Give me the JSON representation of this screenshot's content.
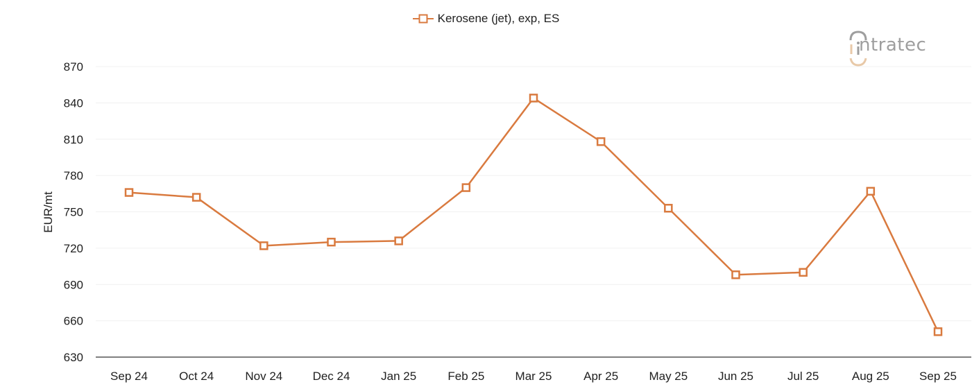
{
  "legend": {
    "label": "Kerosene (jet), exp, ES",
    "marker": "hollow-square-line"
  },
  "logo": {
    "text": "ntratec",
    "brand": "intratec",
    "colors": {
      "text": "#9e9e9e",
      "accent": "#e8c9a8"
    }
  },
  "colors": {
    "series": "#d97a3f",
    "grid": "#f0f0f0",
    "axis": "#555555",
    "text": "#212121"
  },
  "chart_data": {
    "type": "line",
    "title": "",
    "xlabel": "",
    "ylabel": "EUR/mt",
    "ylim": [
      630,
      870
    ],
    "yticks": [
      630,
      660,
      690,
      720,
      750,
      780,
      810,
      840,
      870
    ],
    "grid": true,
    "legend_position": "top-center",
    "categories": [
      "Sep 24",
      "Oct 24",
      "Nov 24",
      "Dec 24",
      "Jan 25",
      "Feb 25",
      "Mar 25",
      "Apr 25",
      "May 25",
      "Jun 25",
      "Jul 25",
      "Aug 25",
      "Sep 25"
    ],
    "series": [
      {
        "name": "Kerosene (jet), exp, ES",
        "marker": "square-hollow",
        "values": [
          766,
          762,
          722,
          725,
          726,
          770,
          844,
          808,
          753,
          698,
          700,
          767,
          651
        ]
      }
    ]
  }
}
